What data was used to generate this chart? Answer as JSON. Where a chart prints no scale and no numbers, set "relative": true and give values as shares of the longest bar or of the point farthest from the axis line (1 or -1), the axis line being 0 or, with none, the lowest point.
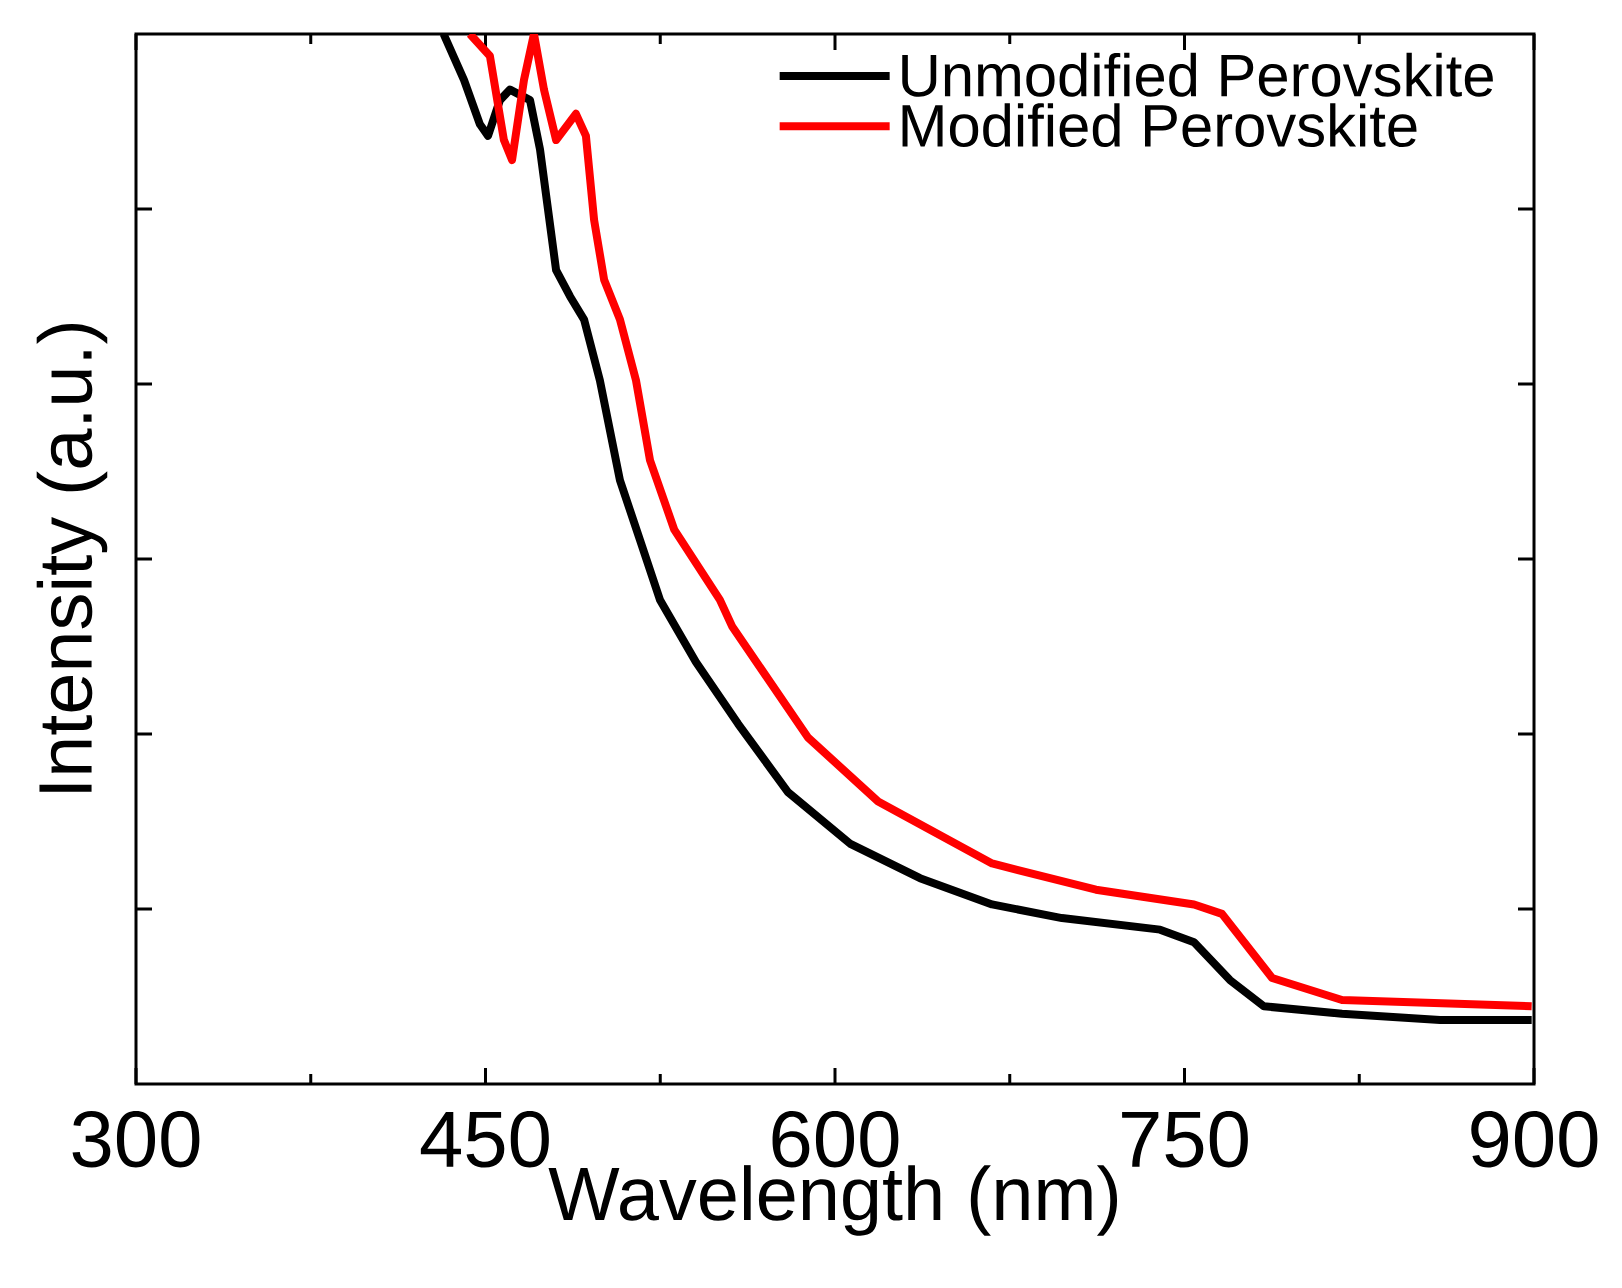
{
  "chart_data": {
    "type": "line",
    "xlabel": "Wavelength (nm)",
    "ylabel": "Intensity (a.u.)",
    "relative": true,
    "xlim": [
      300,
      900
    ],
    "xticks": [
      300,
      450,
      600,
      750,
      900
    ],
    "legend": "top right",
    "grid": false,
    "series": [
      {
        "name": "Unmodified Perovskite",
        "color": "#000000",
        "x": [
          432,
          440.8,
          447.6,
          451.1,
          456.2,
          460.5,
          469.1,
          473.4,
          480.3,
          486.3,
          492.3,
          499.1,
          507.7,
          516.3,
          524.9,
          540.3,
          558.4,
          579.8,
          606.4,
          636.5,
          667.4,
          697.4,
          739.5,
          754.1,
          769.5,
          784.1,
          817.6,
          859.7,
          899
        ],
        "values": [
          1.0,
          0.956,
          0.914,
          0.903,
          0.937,
          0.947,
          0.937,
          0.89,
          0.775,
          0.75,
          0.728,
          0.67,
          0.575,
          0.518,
          0.461,
          0.402,
          0.343,
          0.278,
          0.229,
          0.196,
          0.171,
          0.158,
          0.147,
          0.135,
          0.099,
          0.074,
          0.067,
          0.061,
          0.061
        ]
      },
      {
        "name": "Modified Perovskite",
        "color": "#ff0000",
        "x": [
          443.3,
          451.9,
          457.9,
          461.4,
          466.5,
          470.8,
          475.1,
          480.3,
          488.8,
          493.1,
          496.6,
          500.9,
          507.7,
          514.6,
          520.6,
          531.0,
          550.6,
          555.8,
          588.4,
          618.5,
          667.4,
          712.0,
          754.1,
          766.1,
          787.6,
          817.6,
          899
        ],
        "values": [
          1.0,
          0.979,
          0.899,
          0.88,
          0.956,
          1.0,
          0.947,
          0.899,
          0.924,
          0.903,
          0.823,
          0.766,
          0.728,
          0.67,
          0.594,
          0.528,
          0.461,
          0.436,
          0.33,
          0.269,
          0.21,
          0.185,
          0.171,
          0.162,
          0.101,
          0.08,
          0.074
        ]
      }
    ]
  }
}
